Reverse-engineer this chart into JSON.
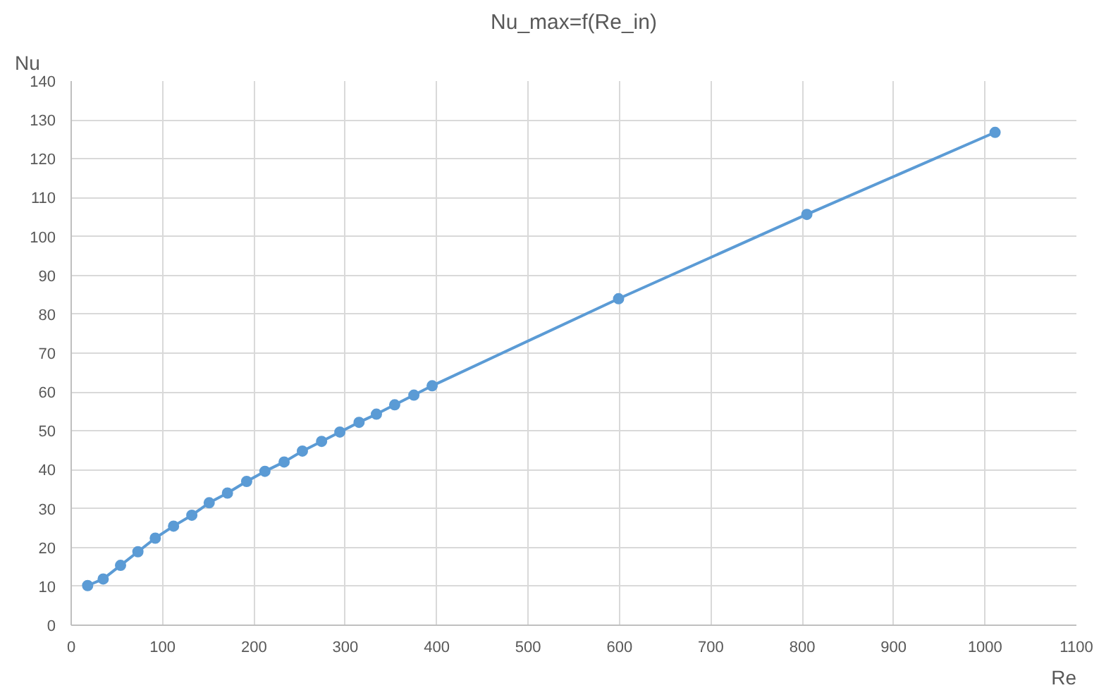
{
  "chart_data": {
    "type": "line",
    "title": "Nu_max=f(Re_in)",
    "xlabel": "Re",
    "ylabel": "Nu",
    "x": [
      18,
      35,
      54,
      73,
      92,
      112,
      132,
      151,
      171,
      192,
      212,
      233,
      253,
      274,
      294,
      315,
      334,
      354,
      375,
      395,
      599,
      805,
      1011
    ],
    "series": [
      {
        "color": "#5b9bd5",
        "values": [
          10.2,
          11.9,
          15.4,
          18.9,
          22.4,
          25.5,
          28.3,
          31.5,
          34,
          37,
          39.6,
          42,
          44.8,
          47.3,
          49.7,
          52.2,
          54.3,
          56.7,
          59.2,
          61.6,
          84,
          105.7,
          126.8
        ]
      }
    ],
    "xlim": [
      0,
      1100
    ],
    "xticks": [
      0,
      100,
      200,
      300,
      400,
      500,
      600,
      700,
      800,
      900,
      1000,
      1100
    ],
    "ylim": [
      0,
      140
    ],
    "yticks": [
      0,
      10,
      20,
      30,
      40,
      50,
      60,
      70,
      80,
      90,
      100,
      110,
      120,
      130,
      140
    ],
    "grid": true,
    "marker": "circle",
    "line_style": "solid"
  }
}
